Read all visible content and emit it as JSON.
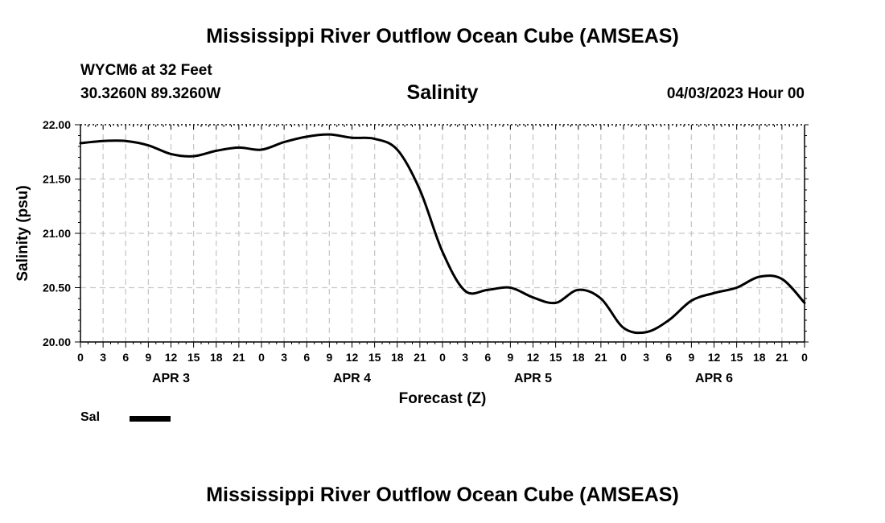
{
  "header": {
    "title": "Mississippi River Outflow Ocean Cube (AMSEAS)",
    "station": "WYCM6 at 32 Feet",
    "coords": "30.3260N  89.3260W",
    "datetime": "04/03/2023 Hour 00"
  },
  "footer": {
    "title": "Mississippi River Outflow Ocean Cube (AMSEAS)"
  },
  "legend": {
    "label": "Sal",
    "color": "#000000"
  },
  "chart_data": {
    "type": "line",
    "title": "Salinity",
    "xlabel": "Forecast (Z)",
    "ylabel": "Salinity (psu)",
    "ylim": [
      20.0,
      22.0
    ],
    "xlim": [
      0,
      96
    ],
    "grid": true,
    "y_ticks": [
      "20.00",
      "20.50",
      "21.00",
      "21.50",
      "22.00"
    ],
    "x_tick_labels": [
      "0",
      "3",
      "6",
      "9",
      "12",
      "15",
      "18",
      "21",
      "0",
      "3",
      "6",
      "9",
      "12",
      "15",
      "18",
      "21",
      "0",
      "3",
      "6",
      "9",
      "12",
      "15",
      "18",
      "21",
      "0",
      "3",
      "6",
      "9",
      "12",
      "15",
      "18",
      "21",
      "0"
    ],
    "day_labels": [
      {
        "label": "APR 3",
        "hour": 12
      },
      {
        "label": "APR 4",
        "hour": 36
      },
      {
        "label": "APR 5",
        "hour": 60
      },
      {
        "label": "APR 6",
        "hour": 84
      }
    ],
    "series": [
      {
        "name": "Sal",
        "color": "#000000",
        "x": [
          0,
          3,
          6,
          9,
          12,
          15,
          18,
          21,
          24,
          27,
          30,
          33,
          36,
          39,
          42,
          45,
          48,
          51,
          54,
          57,
          60,
          63,
          66,
          69,
          72,
          75,
          78,
          81,
          84,
          87,
          90,
          93,
          96
        ],
        "values": [
          21.83,
          21.85,
          21.85,
          21.81,
          21.73,
          21.71,
          21.76,
          21.79,
          21.77,
          21.84,
          21.89,
          21.91,
          21.88,
          21.87,
          21.77,
          21.4,
          20.83,
          20.47,
          20.48,
          20.5,
          20.41,
          20.36,
          20.48,
          20.4,
          20.13,
          20.09,
          20.2,
          20.38,
          20.45,
          20.5,
          20.6,
          20.58,
          20.36
        ]
      }
    ]
  }
}
